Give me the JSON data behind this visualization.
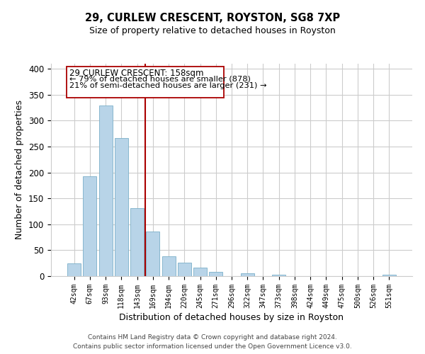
{
  "title": "29, CURLEW CRESCENT, ROYSTON, SG8 7XP",
  "subtitle": "Size of property relative to detached houses in Royston",
  "xlabel": "Distribution of detached houses by size in Royston",
  "ylabel": "Number of detached properties",
  "bar_labels": [
    "42sqm",
    "67sqm",
    "93sqm",
    "118sqm",
    "143sqm",
    "169sqm",
    "194sqm",
    "220sqm",
    "245sqm",
    "271sqm",
    "296sqm",
    "322sqm",
    "347sqm",
    "373sqm",
    "398sqm",
    "424sqm",
    "449sqm",
    "475sqm",
    "500sqm",
    "526sqm",
    "551sqm"
  ],
  "bar_values": [
    25,
    193,
    330,
    267,
    131,
    86,
    38,
    26,
    17,
    8,
    0,
    5,
    0,
    3,
    0,
    0,
    0,
    0,
    0,
    0,
    3
  ],
  "bar_color": "#b8d4e8",
  "bar_edge_color": "#7aafc8",
  "ylim": [
    0,
    410
  ],
  "yticks": [
    0,
    50,
    100,
    150,
    200,
    250,
    300,
    350,
    400
  ],
  "vline_x": 4.5,
  "vline_color": "#aa0000",
  "annotation_title": "29 CURLEW CRESCENT: 158sqm",
  "annotation_line1": "← 79% of detached houses are smaller (878)",
  "annotation_line2": "21% of semi-detached houses are larger (231) →",
  "footer1": "Contains HM Land Registry data © Crown copyright and database right 2024.",
  "footer2": "Contains public sector information licensed under the Open Government Licence v3.0.",
  "background_color": "#ffffff",
  "grid_color": "#cccccc"
}
